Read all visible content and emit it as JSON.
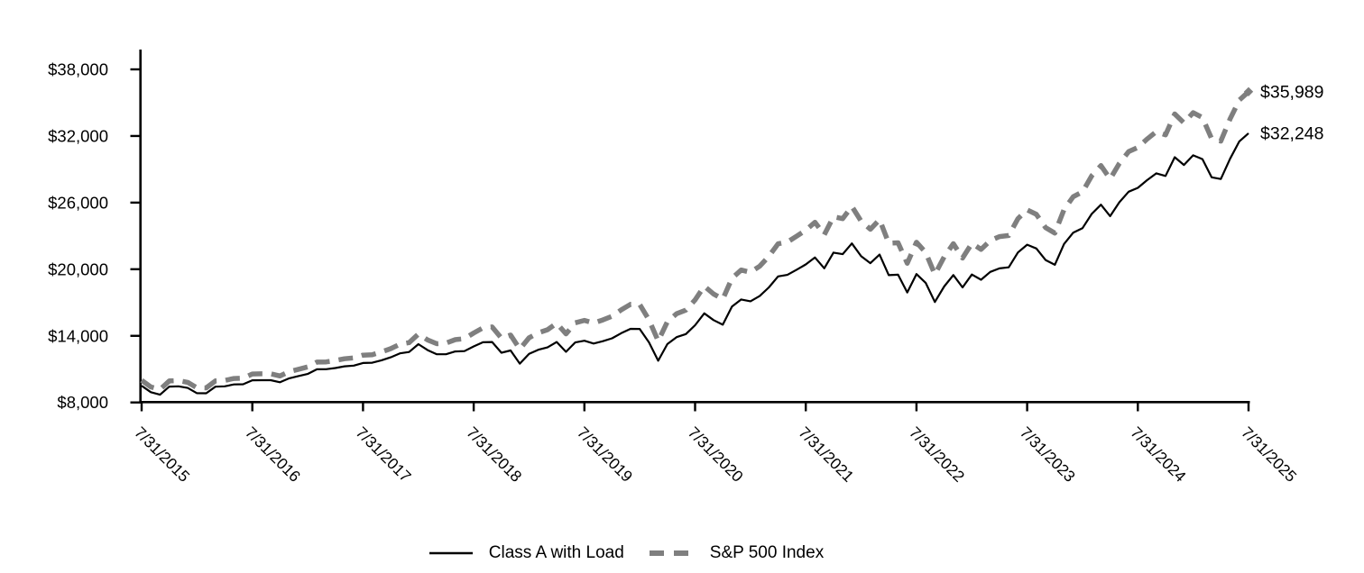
{
  "chart_data": {
    "type": "line",
    "title": "",
    "xlabel": "",
    "ylabel": "",
    "grid": false,
    "legend_position": "bottom",
    "axes": {
      "y_min": 8000,
      "y_max": 38000,
      "y_tick_step": 6000,
      "y_ticks": [
        {
          "value": 8000,
          "label": "$8,000"
        },
        {
          "value": 14000,
          "label": "$14,000"
        },
        {
          "value": 20000,
          "label": "$20,000"
        },
        {
          "value": 26000,
          "label": "$26,000"
        },
        {
          "value": 32000,
          "label": "$32,000"
        },
        {
          "value": 38000,
          "label": "$38,000"
        }
      ],
      "x_ticks": [
        {
          "index": 0,
          "label": "7/31/2015"
        },
        {
          "index": 12,
          "label": "7/31/2016"
        },
        {
          "index": 24,
          "label": "7/31/2017"
        },
        {
          "index": 36,
          "label": "7/31/2018"
        },
        {
          "index": 48,
          "label": "7/31/2019"
        },
        {
          "index": 60,
          "label": "7/31/2020"
        },
        {
          "index": 72,
          "label": "7/31/2021"
        },
        {
          "index": 84,
          "label": "7/31/2022"
        },
        {
          "index": 96,
          "label": "7/31/2023"
        },
        {
          "index": 108,
          "label": "7/31/2024"
        },
        {
          "index": 120,
          "label": "7/31/2025"
        }
      ]
    },
    "x": [
      "2015-07",
      "2015-08",
      "2015-09",
      "2015-10",
      "2015-11",
      "2015-12",
      "2016-01",
      "2016-02",
      "2016-03",
      "2016-04",
      "2016-05",
      "2016-06",
      "2016-07",
      "2016-08",
      "2016-09",
      "2016-10",
      "2016-11",
      "2016-12",
      "2017-01",
      "2017-02",
      "2017-03",
      "2017-04",
      "2017-05",
      "2017-06",
      "2017-07",
      "2017-08",
      "2017-09",
      "2017-10",
      "2017-11",
      "2017-12",
      "2018-01",
      "2018-02",
      "2018-03",
      "2018-04",
      "2018-05",
      "2018-06",
      "2018-07",
      "2018-08",
      "2018-09",
      "2018-10",
      "2018-11",
      "2018-12",
      "2019-01",
      "2019-02",
      "2019-03",
      "2019-04",
      "2019-05",
      "2019-06",
      "2019-07",
      "2019-08",
      "2019-09",
      "2019-10",
      "2019-11",
      "2019-12",
      "2020-01",
      "2020-02",
      "2020-03",
      "2020-04",
      "2020-05",
      "2020-06",
      "2020-07",
      "2020-08",
      "2020-09",
      "2020-10",
      "2020-11",
      "2020-12",
      "2021-01",
      "2021-02",
      "2021-03",
      "2021-04",
      "2021-05",
      "2021-06",
      "2021-07",
      "2021-08",
      "2021-09",
      "2021-10",
      "2021-11",
      "2021-12",
      "2022-01",
      "2022-02",
      "2022-03",
      "2022-04",
      "2022-05",
      "2022-06",
      "2022-07",
      "2022-08",
      "2022-09",
      "2022-10",
      "2022-11",
      "2022-12",
      "2023-01",
      "2023-02",
      "2023-03",
      "2023-04",
      "2023-05",
      "2023-06",
      "2023-07",
      "2023-08",
      "2023-09",
      "2023-10",
      "2023-11",
      "2023-12",
      "2024-01",
      "2024-02",
      "2024-03",
      "2024-04",
      "2024-05",
      "2024-06",
      "2024-07",
      "2024-08",
      "2024-09",
      "2024-10",
      "2024-11",
      "2024-12",
      "2025-01",
      "2025-02",
      "2025-03",
      "2025-04",
      "2025-05",
      "2025-06",
      "2025-07"
    ],
    "series": [
      {
        "name": "Class A with Load",
        "color": "#000000",
        "style": "solid",
        "end_label": "$32,248",
        "end_value": 32248,
        "values": [
          9500,
          8924,
          8701,
          9431,
          9456,
          9304,
          8839,
          8825,
          9419,
          9453,
          9620,
          9641,
          9994,
          10004,
          10003,
          9817,
          10177,
          10374,
          10568,
          10983,
          10993,
          11102,
          11255,
          11322,
          11552,
          11575,
          11801,
          12063,
          12420,
          12545,
          13249,
          12713,
          12345,
          12345,
          12595,
          12626,
          13046,
          13421,
          13446,
          12479,
          12685,
          11494,
          12382,
          12745,
          12958,
          13446,
          12558,
          13406,
          13562,
          13311,
          13522,
          13778,
          14238,
          14628,
          14619,
          13413,
          11754,
          13259,
          13887,
          14161,
          14956,
          16029,
          15416,
          15003,
          16643,
          17278,
          17109,
          17587,
          18362,
          19349,
          19490,
          19949,
          20430,
          21058,
          20084,
          21498,
          21356,
          22319,
          21173,
          20548,
          21319,
          19467,
          19510,
          17907,
          19566,
          18774,
          17051,
          18440,
          19478,
          18363,
          19524,
          19055,
          19761,
          20078,
          20171,
          21513,
          22212,
          21868,
          20832,
          20402,
          22273,
          23293,
          23703,
          24988,
          25812,
          24778,
          26027,
          26981,
          27331,
          28017,
          28638,
          28399,
          30088,
          29394,
          30259,
          29915,
          28276,
          28128,
          29945,
          31520,
          32248
        ]
      },
      {
        "name": "S&P 500 Index",
        "color": "#7f7f7f",
        "style": "dashed",
        "end_marker": "diamond",
        "end_label": "$35,989",
        "end_value": 35989,
        "values": [
          10000,
          9397,
          9165,
          9938,
          9968,
          9811,
          9324,
          9312,
          9943,
          9982,
          10162,
          10188,
          10564,
          10579,
          10581,
          10388,
          10773,
          10986,
          11195,
          11639,
          11653,
          11773,
          11939,
          12015,
          12263,
          12301,
          12554,
          12847,
          13241,
          13388,
          14155,
          13633,
          13287,
          13337,
          13658,
          13743,
          14254,
          14719,
          14803,
          13790,
          14071,
          12800,
          13826,
          14270,
          14547,
          15136,
          14175,
          15174,
          15392,
          15149,
          15432,
          15767,
          16339,
          16833,
          16826,
          15441,
          13534,
          15269,
          15996,
          16314,
          17234,
          18473,
          17771,
          17298,
          19192,
          19929,
          19728,
          20273,
          21161,
          22291,
          22447,
          22970,
          23517,
          24232,
          23105,
          24725,
          24554,
          25654,
          24328,
          23600,
          24476,
          22342,
          22382,
          20535,
          22429,
          21514,
          19532,
          21114,
          22295,
          21010,
          22330,
          21785,
          22584,
          22937,
          23035,
          24558,
          25347,
          24944,
          23754,
          23255,
          25378,
          26530,
          26976,
          28417,
          29332,
          28135,
          29531,
          30591,
          30964,
          31717,
          32396,
          32101,
          33985,
          33176,
          34098,
          33655,
          31760,
          31544,
          33528,
          35235,
          35989
        ]
      }
    ]
  }
}
